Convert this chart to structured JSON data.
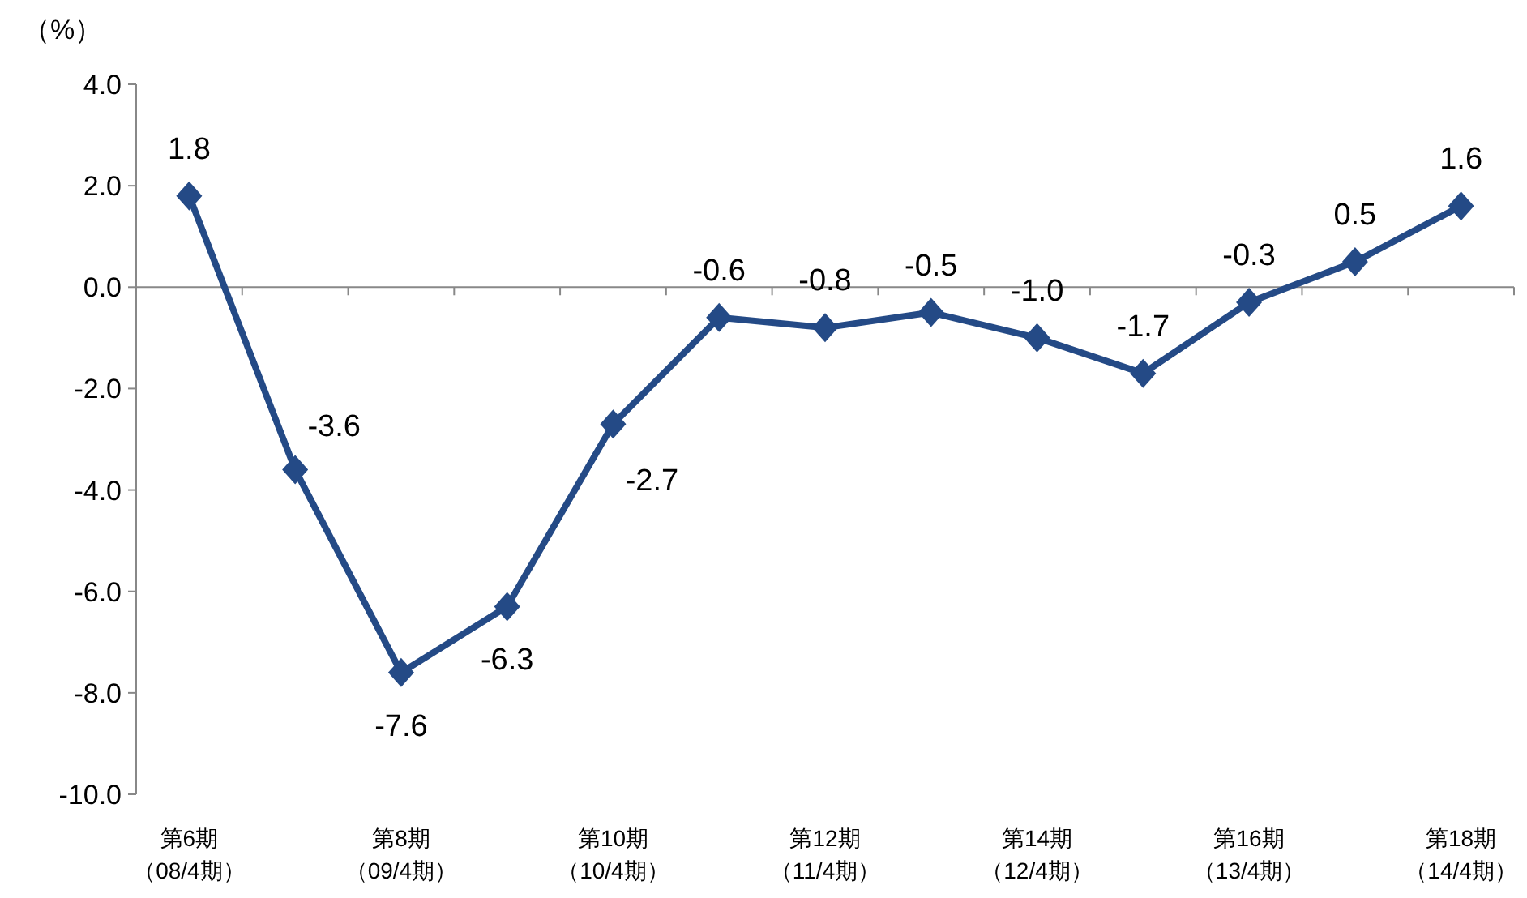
{
  "chart_data": {
    "type": "line",
    "ylabel": "（%）",
    "categories": [
      "第6期（08/4期）",
      null,
      "第8期（09/4期）",
      null,
      "第10期（10/4期）",
      null,
      "第12期（11/4期）",
      null,
      "第14期（12/4期）",
      null,
      "第16期（13/4期）",
      null,
      "第18期（14/4期）"
    ],
    "series": [
      {
        "color": "#244a86",
        "values": [
          1.8,
          -3.6,
          -7.6,
          -6.3,
          -2.7,
          -0.6,
          -0.8,
          -0.5,
          -1.0,
          -1.7,
          -0.3,
          0.5,
          1.6
        ],
        "value_labels": [
          "1.8",
          "-3.6",
          "-7.6",
          "-6.3",
          "-2.7",
          "-0.6",
          "-0.8",
          "-0.5",
          "-1.0",
          "-1.7",
          "-0.3",
          "0.5",
          "1.6"
        ]
      }
    ],
    "ylim": [
      -10,
      4
    ],
    "yticks": [
      {
        "value": 4,
        "label": "4.0"
      },
      {
        "value": 2,
        "label": "2.0"
      },
      {
        "value": 0,
        "label": "0.0"
      },
      {
        "value": -2,
        "label": "-2.0"
      },
      {
        "value": -4,
        "label": "-4.0"
      },
      {
        "value": -6,
        "label": "-6.0"
      },
      {
        "value": -8,
        "label": "-8.0"
      },
      {
        "value": -10,
        "label": "-10.0"
      }
    ],
    "marker": "diamond",
    "line_style": "solid"
  }
}
